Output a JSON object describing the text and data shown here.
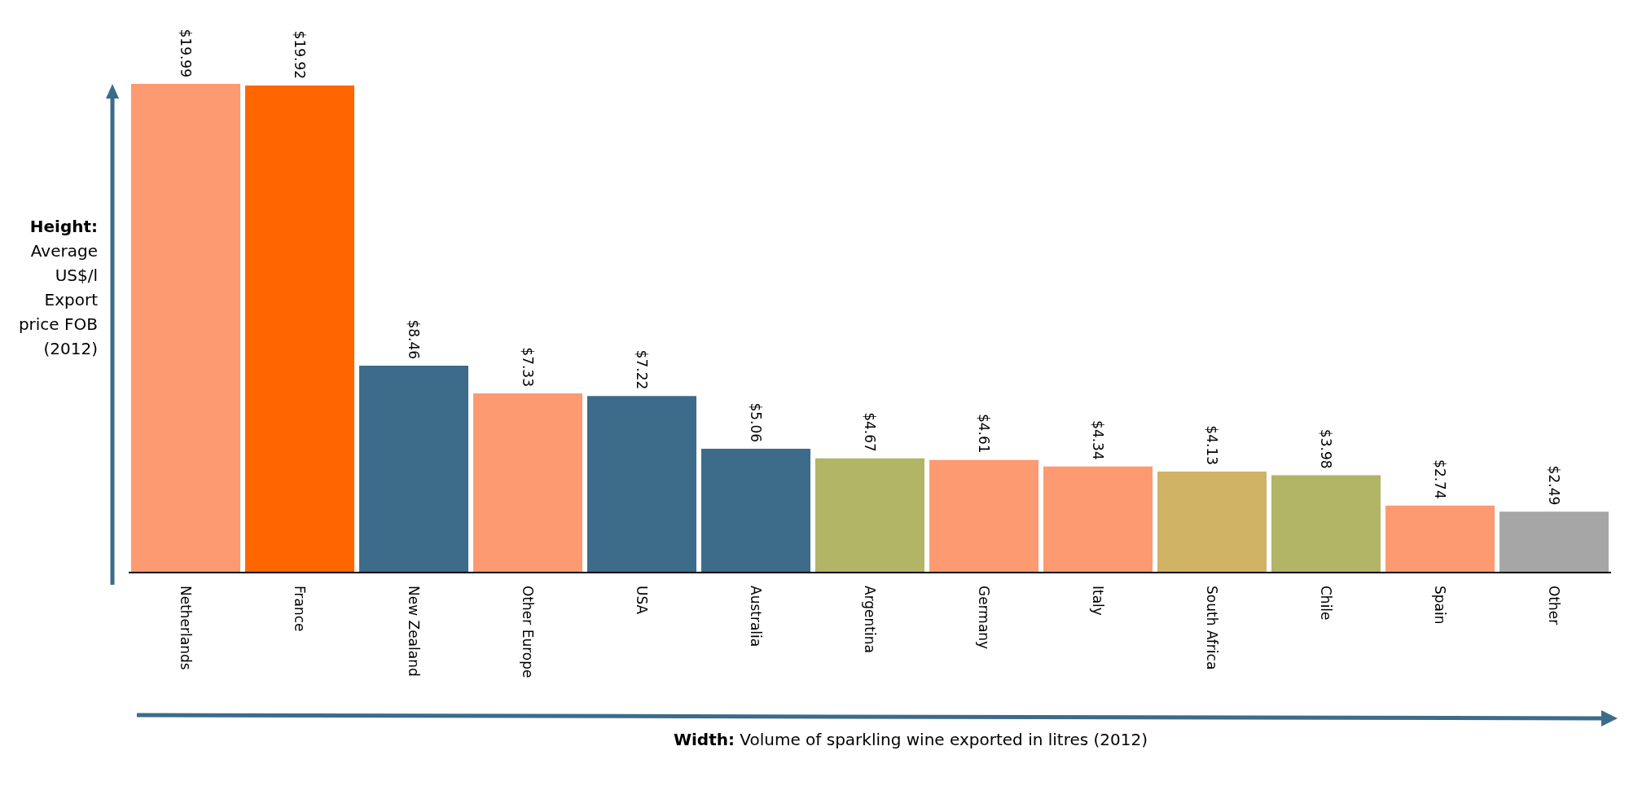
{
  "chart_data": {
    "type": "bar",
    "xlabel": "Width: Volume of sparkling wine exported in litres (2012)",
    "ylabel": "Height: Average US$/l Export price FOB (2012)",
    "categories": [
      "Netherlands",
      "France",
      "New Zealand",
      "Other Europe",
      "USA",
      "Australia",
      "Argentina",
      "Germany",
      "Italy",
      "South Africa",
      "Chile",
      "Spain",
      "Other"
    ],
    "values": [
      19.99,
      19.92,
      8.46,
      7.33,
      7.22,
      5.06,
      4.67,
      4.61,
      4.34,
      4.13,
      3.98,
      2.74,
      2.49
    ],
    "value_labels": [
      "$19.99",
      "$19.92",
      "$8.46",
      "$7.33",
      "$7.22",
      "$5.06",
      "$4.67",
      "$4.61",
      "$4.34",
      "$4.13",
      "$3.98",
      "$2.74",
      "$2.49"
    ],
    "colors": [
      "#fd9a72",
      "#ff6600",
      "#3d6b8a",
      "#fd9a72",
      "#3d6b8a",
      "#3d6b8a",
      "#b2b466",
      "#fd9a72",
      "#fd9a72",
      "#d1b366",
      "#b2b466",
      "#fd9a72",
      "#a6a6a6"
    ],
    "grid": false,
    "legend": false
  }
}
